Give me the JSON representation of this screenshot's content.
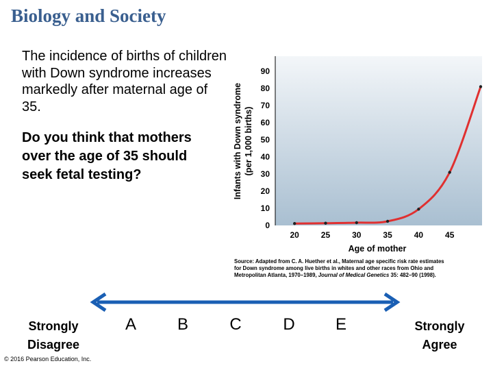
{
  "slide": {
    "title": "Biology and Society",
    "intro": "The incidence of births of children with Down syndrome increases markedly after maternal age of 35.",
    "question": "Do you think that mothers over the age of 35 should seek fetal testing?",
    "source_prefix": "Source: Adapted from C. A. Huether et al., Maternal age specific risk rate estimates",
    "source_line2": "for Down syndrome among live births in whites and other races from Ohio and",
    "source_line3_a": "Metropolitan Atlanta, 1970–1989,",
    "source_journal": "Journal of Medical Genetics",
    "source_line3_b": "35: 482–90 (1998).",
    "copyright": "© 2016 Pearson Education, Inc."
  },
  "scale": {
    "left_label_line1": "Strongly",
    "left_label_line2": "Disagree",
    "right_label_line1": "Strongly",
    "right_label_line2": "Agree",
    "options": [
      "A",
      "B",
      "C",
      "D",
      "E"
    ],
    "colors": {
      "arrow": "#1a5fb4"
    }
  },
  "chart_data": {
    "type": "line",
    "xlabel": "Age of mother",
    "ylabel_line1": "Infants with Down syndrome",
    "ylabel_line2": "(per 1,000 births)",
    "x_ticks": [
      20,
      25,
      30,
      35,
      40,
      45
    ],
    "y_ticks": [
      0,
      10,
      20,
      30,
      40,
      50,
      60,
      70,
      80,
      90
    ],
    "xlim": [
      17,
      50
    ],
    "ylim": [
      0,
      90
    ],
    "grid": false,
    "points": [
      {
        "x": 20,
        "y": 1.1
      },
      {
        "x": 25,
        "y": 1.3
      },
      {
        "x": 30,
        "y": 1.6
      },
      {
        "x": 35,
        "y": 2.4
      },
      {
        "x": 40,
        "y": 9.5
      },
      {
        "x": 45,
        "y": 31
      },
      {
        "x": 50,
        "y": 81
      }
    ],
    "colors": {
      "line": "#e03030",
      "point": "#222222",
      "bg_top": "#f3f6f9",
      "bg_bottom": "#a9bfd1"
    }
  }
}
